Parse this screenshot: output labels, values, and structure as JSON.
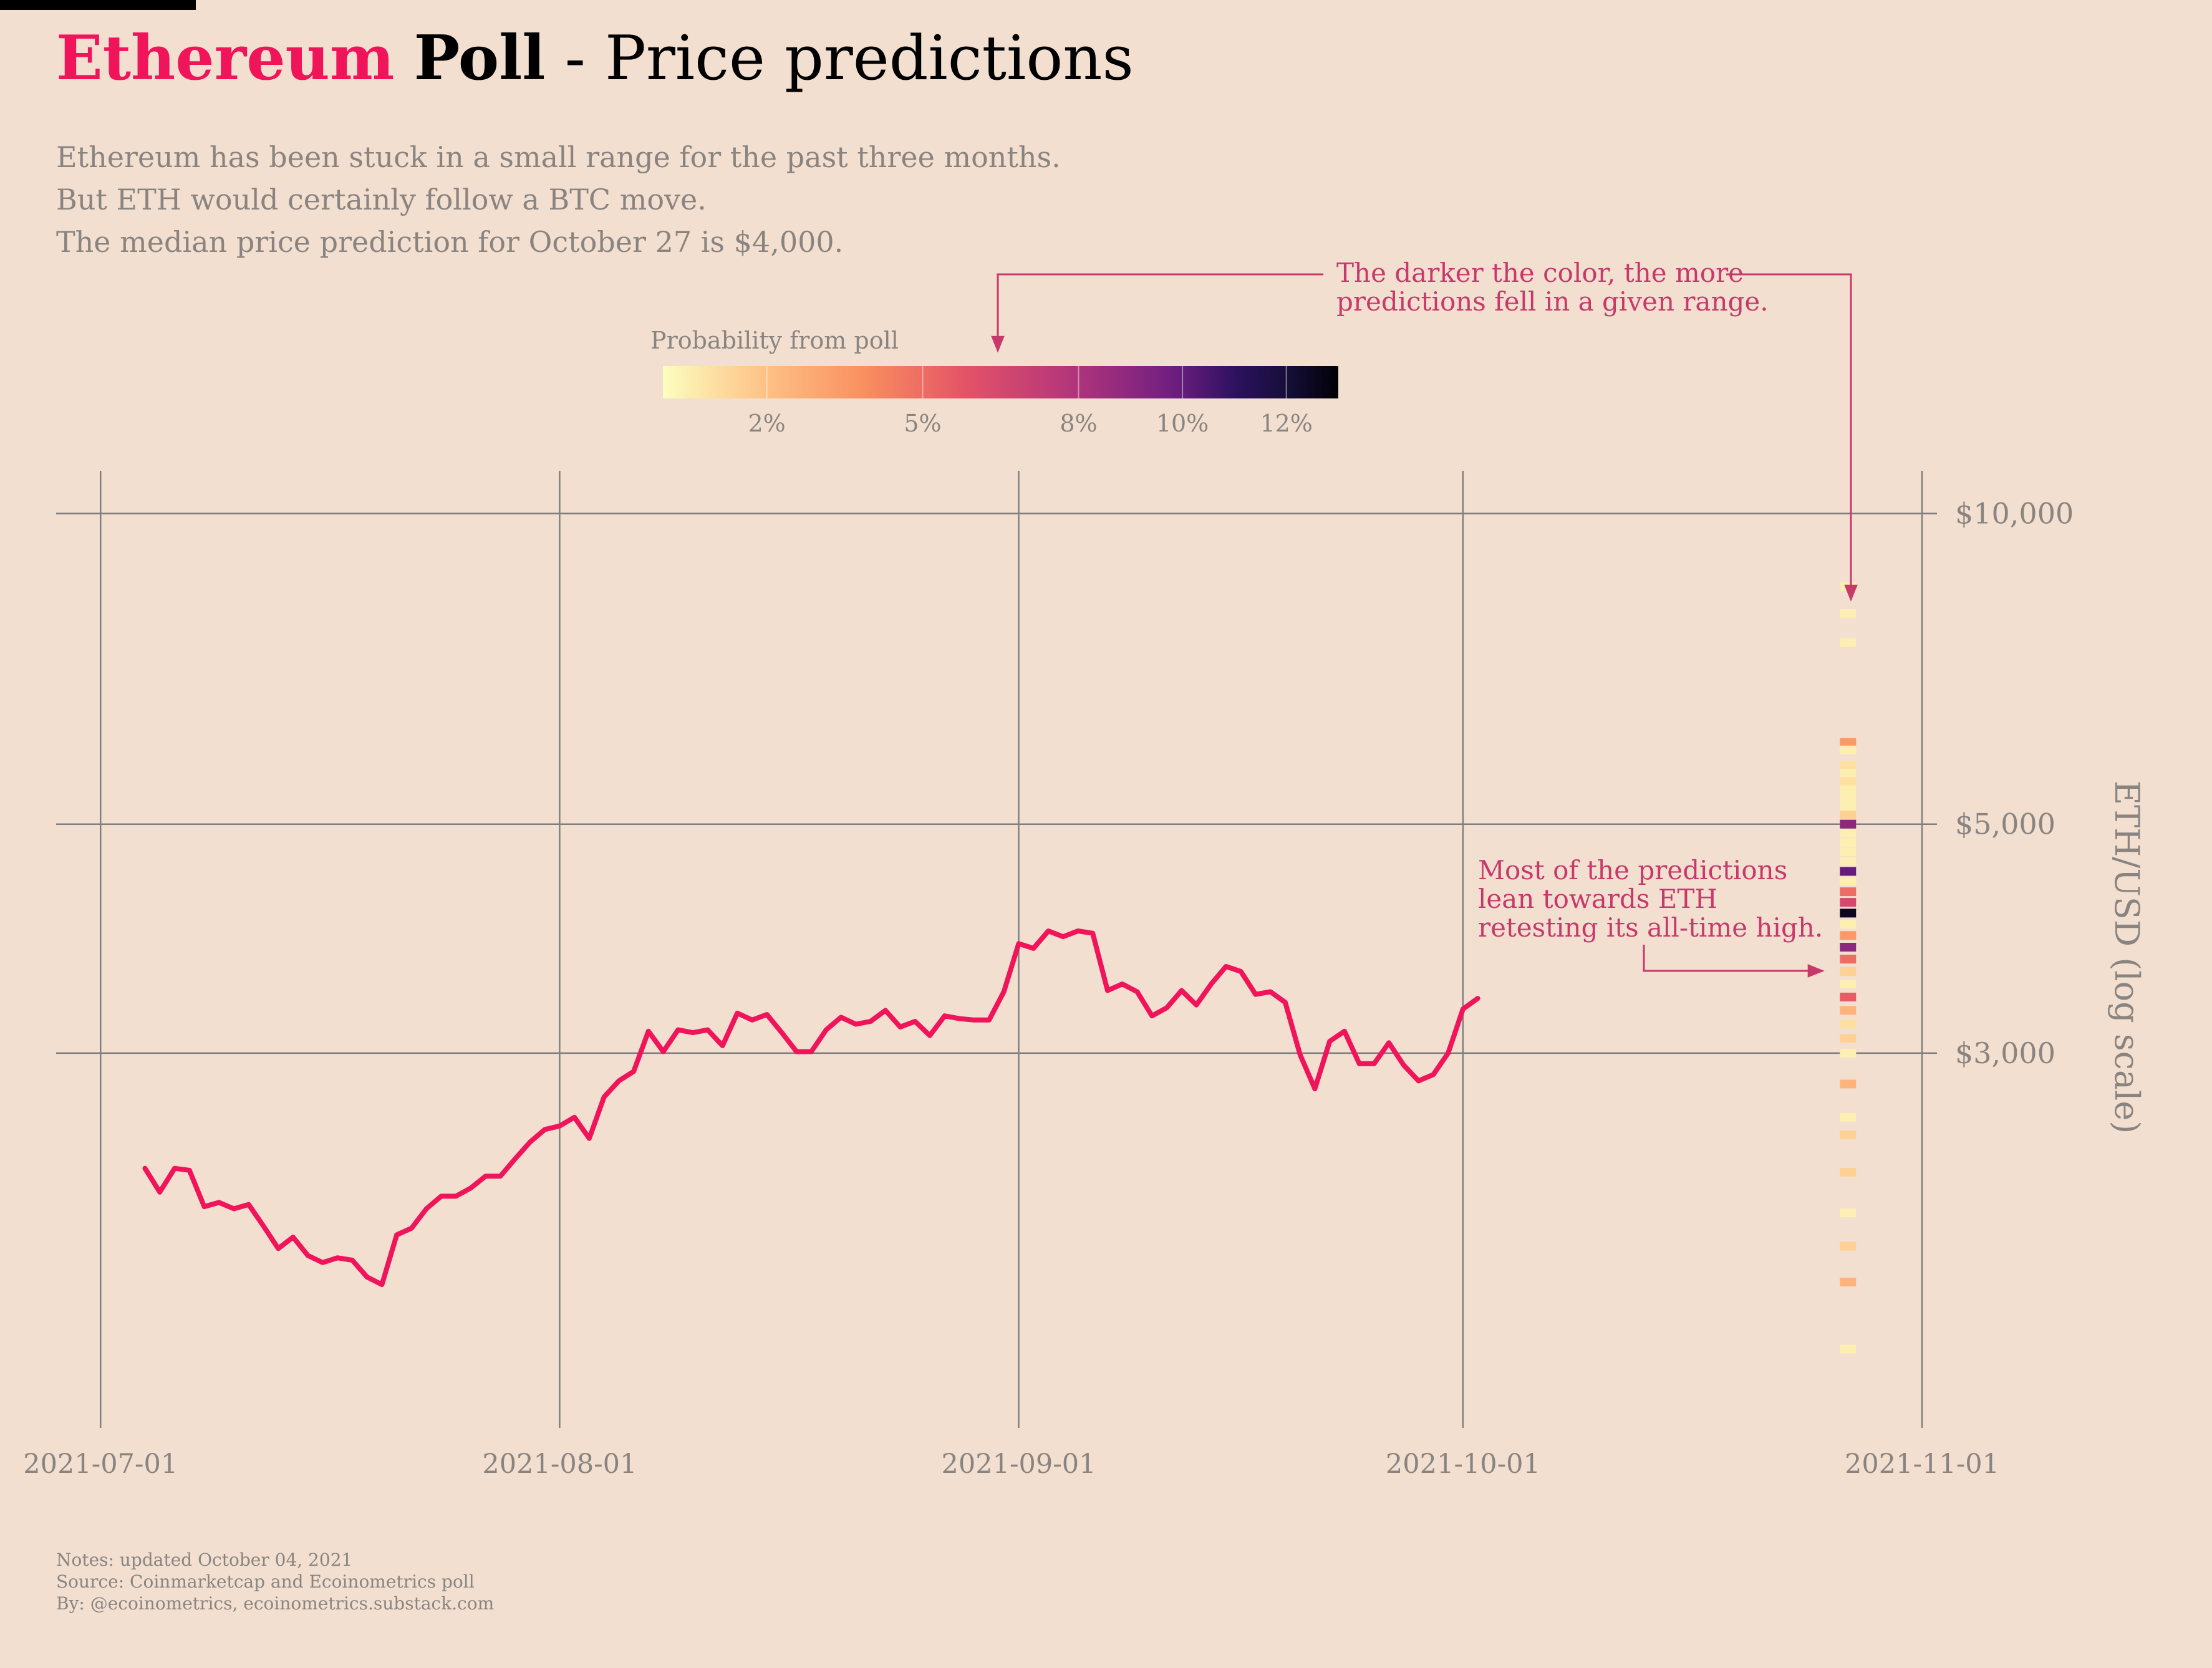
{
  "header": {
    "title_part1": "Ethereum",
    "title_part2": "Poll",
    "title_part3": " - Price predictions",
    "subtitle_lines": [
      "Ethereum has been stuck in a small range for the past three months.",
      "But ETH would certainly follow a BTC move.",
      "The median price prediction for October 27 is $4,000."
    ]
  },
  "colorbar": {
    "title": "Probability from poll",
    "ticks": [
      {
        "value": 2,
        "label": "2%"
      },
      {
        "value": 5,
        "label": "5%"
      },
      {
        "value": 8,
        "label": "8%"
      },
      {
        "value": 10,
        "label": "10%"
      },
      {
        "value": 12,
        "label": "12%"
      }
    ],
    "range": [
      0,
      13
    ]
  },
  "annotations": {
    "top": [
      "The darker the color, the more",
      "predictions fell in a given range."
    ],
    "mid": [
      "Most of the predictions",
      "lean towards ETH",
      "retesting its all-time high."
    ],
    "color": "#c8396b"
  },
  "colors": {
    "background": "#f2dfd0",
    "price_line": "#f0145a",
    "grid": "#7f7f7f",
    "muted_text": "#8a8480"
  },
  "footer": {
    "lines": [
      "Notes: updated October 04, 2021",
      "Source: Coinmarketcap and Ecoinometrics poll",
      "By: @ecoinometrics, ecoinometrics.substack.com"
    ]
  },
  "chart_data": {
    "type": "line",
    "x_ticks": [
      "2021-07-01",
      "2021-08-01",
      "2021-09-01",
      "2021-10-01",
      "2021-11-01"
    ],
    "xlim": [
      "2021-06-28",
      "2021-11-01"
    ],
    "ylabel": "ETH/USD (log scale)",
    "y_scale": "log",
    "ylim": [
      1300,
      11000
    ],
    "y_ticks": [
      {
        "value": 3000,
        "label": "$3,000"
      },
      {
        "value": 5000,
        "label": "$5,000"
      },
      {
        "value": 10000,
        "label": "$10,000"
      }
    ],
    "grid": true,
    "series": [
      {
        "x": [
          "2021-07-04",
          "2021-07-05",
          "2021-07-06",
          "2021-07-07",
          "2021-07-08",
          "2021-07-09",
          "2021-07-10",
          "2021-07-11",
          "2021-07-12",
          "2021-07-13",
          "2021-07-14",
          "2021-07-15",
          "2021-07-16",
          "2021-07-17",
          "2021-07-18",
          "2021-07-19",
          "2021-07-20",
          "2021-07-21",
          "2021-07-22",
          "2021-07-23",
          "2021-07-24",
          "2021-07-25",
          "2021-07-26",
          "2021-07-27",
          "2021-07-28",
          "2021-07-29",
          "2021-07-30",
          "2021-07-31",
          "2021-08-01",
          "2021-08-02",
          "2021-08-03",
          "2021-08-04",
          "2021-08-05",
          "2021-08-06",
          "2021-08-07",
          "2021-08-08",
          "2021-08-09",
          "2021-08-10",
          "2021-08-11",
          "2021-08-12",
          "2021-08-13",
          "2021-08-14",
          "2021-08-15",
          "2021-08-16",
          "2021-08-17",
          "2021-08-18",
          "2021-08-19",
          "2021-08-20",
          "2021-08-21",
          "2021-08-22",
          "2021-08-23",
          "2021-08-24",
          "2021-08-25",
          "2021-08-26",
          "2021-08-27",
          "2021-08-28",
          "2021-08-29",
          "2021-08-30",
          "2021-08-31",
          "2021-09-01",
          "2021-09-02",
          "2021-09-03",
          "2021-09-04",
          "2021-09-05",
          "2021-09-06",
          "2021-09-07",
          "2021-09-08",
          "2021-09-09",
          "2021-09-10",
          "2021-09-11",
          "2021-09-12",
          "2021-09-13",
          "2021-09-14",
          "2021-09-15",
          "2021-09-16",
          "2021-09-17",
          "2021-09-18",
          "2021-09-19",
          "2021-09-20",
          "2021-09-21",
          "2021-09-22",
          "2021-09-23",
          "2021-09-24",
          "2021-09-25",
          "2021-09-26",
          "2021-09-27",
          "2021-09-28",
          "2021-09-29",
          "2021-09-30",
          "2021-10-01",
          "2021-10-02"
        ],
        "values": [
          2320,
          2200,
          2320,
          2310,
          2130,
          2150,
          2120,
          2140,
          2040,
          1940,
          1990,
          1910,
          1880,
          1900,
          1890,
          1820,
          1790,
          2000,
          2030,
          2120,
          2180,
          2180,
          2220,
          2280,
          2280,
          2370,
          2460,
          2530,
          2550,
          2600,
          2480,
          2720,
          2820,
          2880,
          3150,
          3010,
          3160,
          3140,
          3160,
          3050,
          3280,
          3230,
          3270,
          3140,
          3010,
          3010,
          3160,
          3250,
          3200,
          3220,
          3300,
          3180,
          3220,
          3120,
          3260,
          3240,
          3230,
          3230,
          3440,
          3830,
          3790,
          3940,
          3890,
          3940,
          3920,
          3450,
          3500,
          3440,
          3260,
          3320,
          3450,
          3340,
          3500,
          3640,
          3600,
          3420,
          3440,
          3360,
          2990,
          2770,
          3080,
          3150,
          2930,
          2930,
          3070,
          2920,
          2820,
          2860,
          3000,
          3310,
          3390
        ]
      }
    ],
    "prediction_strip": {
      "date": "2021-10-27",
      "prices": [
        8500,
        8000,
        7500,
        6000,
        5900,
        5700,
        5600,
        5500,
        5400,
        5300,
        5200,
        5100,
        5000,
        4900,
        4800,
        4700,
        4600,
        4500,
        4400,
        4300,
        4200,
        4100,
        4000,
        3900,
        3800,
        3700,
        3600,
        3500,
        3400,
        3300,
        3200,
        3100,
        3000,
        2800,
        2600,
        2500,
        2300,
        2100,
        1950,
        1800,
        1550
      ],
      "probabilities": [
        0.5,
        0.5,
        0.5,
        3.5,
        0.5,
        1.0,
        0.5,
        1.0,
        0.5,
        0.5,
        0.5,
        1.5,
        9.0,
        0.5,
        0.5,
        0.5,
        0.5,
        10.0,
        0.5,
        5.0,
        6.5,
        12.5,
        0.5,
        3.5,
        9.0,
        5.0,
        1.5,
        0.5,
        5.5,
        2.5,
        1.0,
        1.5,
        0.5,
        2.5,
        0.5,
        1.5,
        1.5,
        0.5,
        1.5,
        2.5,
        0.5
      ]
    }
  }
}
